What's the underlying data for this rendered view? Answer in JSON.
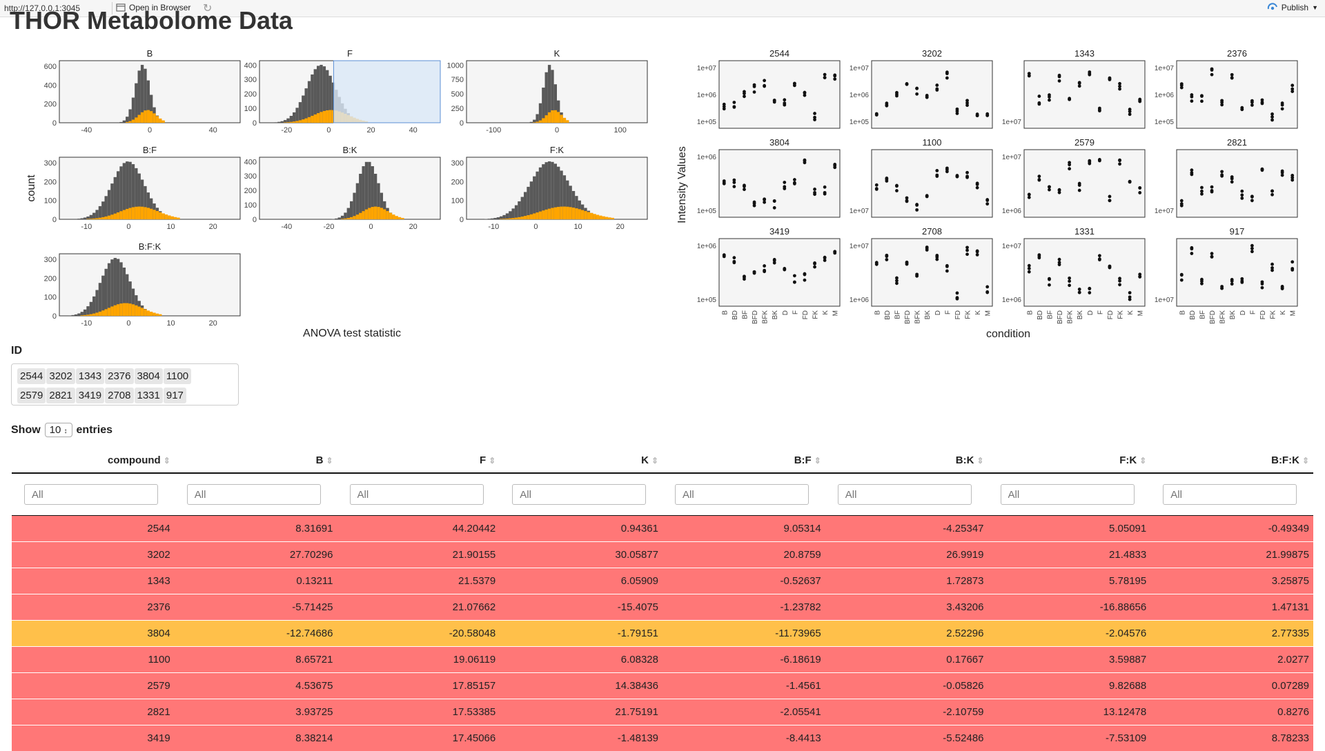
{
  "topbar": {
    "url": "http://127.0.0.1:3045",
    "open_label": "Open in Browser",
    "publish_label": "Publish",
    "icons": {
      "open": "window-icon",
      "refresh": "refresh-icon",
      "publish": "publish-icon",
      "menu": "chevron-down-icon"
    }
  },
  "page": {
    "title": "THOR Metabolome Data"
  },
  "histograms": {
    "ylabel": "count",
    "xlabel": "ANOVA test statistic",
    "panels": [
      {
        "title": "B",
        "xticks": [
          "-40",
          "0",
          "40"
        ],
        "yticks": [
          "0",
          "200",
          "400",
          "600"
        ],
        "selected": false
      },
      {
        "title": "F",
        "xticks": [
          "-20",
          "0",
          "20",
          "40"
        ],
        "yticks": [
          "0",
          "100",
          "200",
          "300",
          "400"
        ],
        "selected": true
      },
      {
        "title": "K",
        "xticks": [
          "-100",
          "0",
          "100"
        ],
        "yticks": [
          "0",
          "250",
          "500",
          "750",
          "1000"
        ],
        "selected": false
      },
      {
        "title": "B:F",
        "xticks": [
          "-10",
          "0",
          "10",
          "20"
        ],
        "yticks": [
          "0",
          "100",
          "200",
          "300"
        ],
        "selected": false
      },
      {
        "title": "B:K",
        "xticks": [
          "-40",
          "-20",
          "0",
          "20"
        ],
        "yticks": [
          "0",
          "100",
          "200",
          "300",
          "400"
        ],
        "selected": false
      },
      {
        "title": "F:K",
        "xticks": [
          "-10",
          "0",
          "10",
          "20"
        ],
        "yticks": [
          "0",
          "100",
          "200",
          "300"
        ],
        "selected": false
      },
      {
        "title": "B:F:K",
        "xticks": [
          "-10",
          "0",
          "10",
          "20"
        ],
        "yticks": [
          "0",
          "100",
          "200",
          "300"
        ],
        "selected": false
      }
    ]
  },
  "scatter": {
    "ylabel": "Intensity Values",
    "xlabel": "condition",
    "conditions": [
      "B",
      "BD",
      "BF",
      "BFD",
      "BFK",
      "BK",
      "D",
      "F",
      "FD",
      "FK",
      "K",
      "M"
    ],
    "panels": [
      {
        "title": "2544",
        "yticks": [
          "1e+05",
          "1e+06",
          "1e+07"
        ]
      },
      {
        "title": "3202",
        "yticks": [
          "1e+05",
          "1e+06",
          "1e+07"
        ]
      },
      {
        "title": "1343",
        "yticks": [
          "1e+07"
        ]
      },
      {
        "title": "2376",
        "yticks": [
          "1e+05",
          "1e+06",
          "1e+07"
        ]
      },
      {
        "title": "3804",
        "yticks": [
          "1e+05",
          "1e+06"
        ]
      },
      {
        "title": "1100",
        "yticks": [
          "1e+07"
        ]
      },
      {
        "title": "2579",
        "yticks": [
          "1e+06",
          "1e+07"
        ]
      },
      {
        "title": "2821",
        "yticks": [
          "1e+07"
        ]
      },
      {
        "title": "3419",
        "yticks": [
          "1e+05",
          "1e+06"
        ]
      },
      {
        "title": "2708",
        "yticks": [
          "1e+06",
          "1e+07"
        ]
      },
      {
        "title": "1331",
        "yticks": [
          "1e+06",
          "1e+07"
        ]
      },
      {
        "title": "917",
        "yticks": [
          "1e+07"
        ]
      }
    ]
  },
  "id_filter": {
    "label": "ID",
    "chips": [
      "2544",
      "3202",
      "1343",
      "2376",
      "3804",
      "1100",
      "2579",
      "2821",
      "3419",
      "2708",
      "1331",
      "917"
    ]
  },
  "table": {
    "show_label": "Show",
    "entries_value": "10",
    "entries_label": "entries",
    "columns": [
      "compound",
      "B",
      "F",
      "K",
      "B:F",
      "B:K",
      "F:K",
      "B:F:K"
    ],
    "filter_placeholder": "All",
    "rows": [
      {
        "cells": [
          "2544",
          "8.31691",
          "44.20442",
          "0.94361",
          "9.05314",
          "-4.25347",
          "5.05091",
          "-0.49349"
        ],
        "highlight": "red"
      },
      {
        "cells": [
          "3202",
          "27.70296",
          "21.90155",
          "30.05877",
          "20.8759",
          "26.9919",
          "21.4833",
          "21.99875"
        ],
        "highlight": "red"
      },
      {
        "cells": [
          "1343",
          "0.13211",
          "21.5379",
          "6.05909",
          "-0.52637",
          "1.72873",
          "5.78195",
          "3.25875"
        ],
        "highlight": "red"
      },
      {
        "cells": [
          "2376",
          "-5.71425",
          "21.07662",
          "-15.4075",
          "-1.23782",
          "3.43206",
          "-16.88656",
          "1.47131"
        ],
        "highlight": "red"
      },
      {
        "cells": [
          "3804",
          "-12.74686",
          "-20.58048",
          "-1.79151",
          "-11.73965",
          "2.52296",
          "-2.04576",
          "2.77335"
        ],
        "highlight": "amber"
      },
      {
        "cells": [
          "1100",
          "8.65721",
          "19.06119",
          "6.08328",
          "-6.18619",
          "0.17667",
          "3.59887",
          "2.0277"
        ],
        "highlight": "red"
      },
      {
        "cells": [
          "2579",
          "4.53675",
          "17.85157",
          "14.38436",
          "-1.4561",
          "-0.05826",
          "9.82688",
          "0.07289"
        ],
        "highlight": "red"
      },
      {
        "cells": [
          "2821",
          "3.93725",
          "17.53385",
          "21.75191",
          "-2.05541",
          "-2.10759",
          "13.12478",
          "0.8276"
        ],
        "highlight": "red"
      },
      {
        "cells": [
          "3419",
          "8.38214",
          "17.45066",
          "-1.48139",
          "-8.4413",
          "-5.52486",
          "-7.53109",
          "8.78233"
        ],
        "highlight": "red"
      }
    ]
  },
  "colors": {
    "row_red": "#ff7777",
    "row_amber": "#ffc04a",
    "hist_total": "#595959",
    "hist_sub": "#ffa500",
    "brush": "#dbe9f8",
    "panel_bg": "#f5f5f5"
  }
}
